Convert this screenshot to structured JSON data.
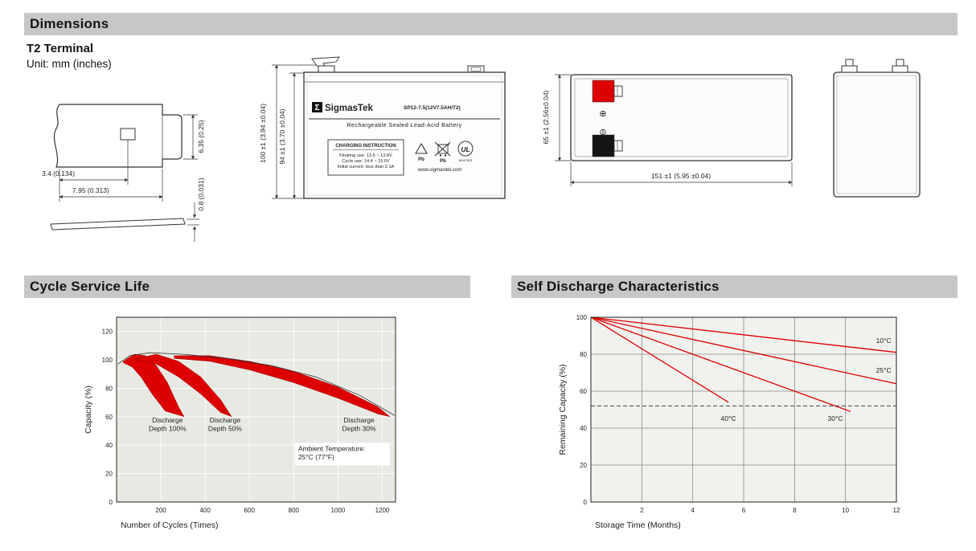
{
  "colors": {
    "bar_bg": "#c7c7c7",
    "accent_red": "#dd0000",
    "terminal_black": "#141414"
  },
  "header": {
    "title": "Dimensions",
    "subtitle": "T2 Terminal",
    "unit_note": "Unit: mm (inches)"
  },
  "sections": {
    "cycle_title": "Cycle Service Life",
    "discharge_title": "Self Discharge Characteristics"
  },
  "terminal_drawing": {
    "dim_a": "3.4 (0.134)",
    "dim_b": "7.95 (0.313)",
    "dim_c": "6.35 (0.25)",
    "dim_d": "0.8 (0.031)"
  },
  "front_view": {
    "sigma": "Σ",
    "brand": "SigmasTek",
    "model": "SP12-7.5(12V7.5AH/T2)",
    "type_line": "Rechargeable Sealed Lead-Acid Battery",
    "charge_box_title": "CHARGING INSTRUCTION",
    "charge_line1": "Floating use: 13.5 ~ 13.8V",
    "charge_line2": "Cycle use: 14.4 ~ 15.0V",
    "charge_line3": "Initial current: less than 2.1A",
    "pb1": "Pb",
    "pb2": "Pb",
    "ul_text": "UL",
    "ul_code": "MH47923",
    "website": "www.sigmastek.com",
    "dim_outer": "100 ±1 (3.94 ±0.04)",
    "dim_inner": "94 ±1 (3.70 ±0.04)"
  },
  "side_view": {
    "dim_height": "65 ±1 (2.56±0.04)",
    "dim_length": "151 ±1 (5.95 ±0.04)",
    "plus": "⊕",
    "minus": "⊖"
  },
  "chart_data": [
    {
      "type": "area",
      "title": "Cycle Service Life",
      "xlabel": "Number of Cycles (Times)",
      "ylabel": "Capacity (%)",
      "xlim": [
        0,
        1260
      ],
      "ylim": [
        0,
        130
      ],
      "xticks": [
        200,
        400,
        600,
        800,
        1000,
        1200
      ],
      "yticks": [
        0,
        20,
        40,
        60,
        80,
        100,
        120
      ],
      "bg": "#e9e9e3",
      "grid": "#ffffff",
      "accent": "#dd0000",
      "bands": [
        {
          "name": "Discharge Depth 100%",
          "upper": [
            [
              30,
              99
            ],
            [
              80,
              104
            ],
            [
              130,
              103
            ],
            [
              180,
              96
            ],
            [
              230,
              84
            ],
            [
              280,
              67
            ],
            [
              305,
              60
            ]
          ],
          "lower": [
            [
              30,
              98
            ],
            [
              70,
              95
            ],
            [
              110,
              88
            ],
            [
              160,
              76
            ],
            [
              220,
              64
            ],
            [
              305,
              60
            ]
          ]
        },
        {
          "name": "Discharge Depth 50%",
          "upper": [
            [
              90,
              101
            ],
            [
              180,
              104
            ],
            [
              280,
              99
            ],
            [
              380,
              88
            ],
            [
              470,
              72
            ],
            [
              520,
              60
            ]
          ],
          "lower": [
            [
              90,
              100
            ],
            [
              180,
              97
            ],
            [
              280,
              88
            ],
            [
              380,
              76
            ],
            [
              470,
              63
            ],
            [
              520,
              60
            ]
          ]
        },
        {
          "name": "Discharge Depth 30%",
          "upper": [
            [
              260,
              103
            ],
            [
              420,
              103
            ],
            [
              600,
              99
            ],
            [
              800,
              92
            ],
            [
              1000,
              81
            ],
            [
              1180,
              67
            ],
            [
              1235,
              60
            ]
          ],
          "lower": [
            [
              260,
              101
            ],
            [
              420,
              99
            ],
            [
              600,
              93
            ],
            [
              800,
              84
            ],
            [
              1000,
              73
            ],
            [
              1180,
              62
            ],
            [
              1235,
              60
            ]
          ]
        }
      ],
      "lines": [
        {
          "name": "envelope",
          "points": [
            [
              5,
              97
            ],
            [
              60,
              103
            ],
            [
              150,
              105
            ],
            [
              300,
              104
            ],
            [
              500,
              101
            ],
            [
              700,
              96
            ],
            [
              900,
              88
            ],
            [
              1100,
              75
            ],
            [
              1255,
              61
            ]
          ],
          "color": "#333333",
          "width": 0.8
        }
      ],
      "annotations": [
        {
          "text": "Discharge\nDepth 100%",
          "x": 230,
          "y": 56,
          "anchor": "middle"
        },
        {
          "text": "Discharge\nDepth 50%",
          "x": 490,
          "y": 56,
          "anchor": "middle"
        },
        {
          "text": "Discharge\nDepth 30%",
          "x": 1095,
          "y": 56,
          "anchor": "middle"
        },
        {
          "text": "Ambient Temperature:\n25°C (77°F)",
          "x": 820,
          "y": 36,
          "anchor": "start",
          "box": true,
          "bw": 118,
          "bh": 28
        }
      ]
    },
    {
      "type": "line",
      "title": "Self Discharge Characteristics",
      "xlabel": "Storage Time (Months)",
      "ylabel": "Remaining Capacity (%)",
      "xlim": [
        0,
        12
      ],
      "ylim": [
        0,
        100
      ],
      "xticks": [
        2,
        4,
        6,
        8,
        10,
        12
      ],
      "yticks": [
        0,
        20,
        40,
        60,
        80,
        100
      ],
      "bg": "#f1f1ee",
      "grid": "#8a8a8a",
      "accent": "#dd0000",
      "lines": [
        {
          "name": "10°C",
          "points": [
            [
              0,
              100
            ],
            [
              12,
              81
            ]
          ],
          "color": "#dd0000",
          "width": 1.3
        },
        {
          "name": "25°C",
          "points": [
            [
              0,
              100
            ],
            [
              12,
              64
            ]
          ],
          "color": "#dd0000",
          "width": 1.3
        },
        {
          "name": "30°C",
          "points": [
            [
              0,
              100
            ],
            [
              10.2,
              49
            ]
          ],
          "color": "#dd0000",
          "width": 1.3
        },
        {
          "name": "40°C",
          "points": [
            [
              0,
              100
            ],
            [
              5.4,
              54
            ]
          ],
          "color": "#dd0000",
          "width": 1.3
        },
        {
          "name": "threshold",
          "points": [
            [
              0,
              52
            ],
            [
              12,
              52
            ]
          ],
          "color": "#444444",
          "width": 1,
          "dash": "5,3"
        }
      ],
      "annotations": [
        {
          "text": "10°C",
          "x": 11.2,
          "y": 86,
          "anchor": "start"
        },
        {
          "text": "25°C",
          "x": 11.2,
          "y": 70,
          "anchor": "start"
        },
        {
          "text": "40°C",
          "x": 5.1,
          "y": 44,
          "anchor": "start"
        },
        {
          "text": "30°C",
          "x": 9.3,
          "y": 44,
          "anchor": "start"
        }
      ]
    }
  ]
}
